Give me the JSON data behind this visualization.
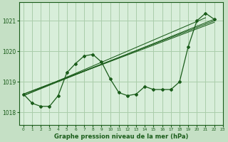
{
  "title": "Graphe pression niveau de la mer (hPa)",
  "bg_color": "#c5e0c5",
  "plot_bg_color": "#d8eeda",
  "line_color": "#1a5c1a",
  "grid_color": "#aaccaa",
  "text_color": "#1a5c1a",
  "xlim": [
    -0.5,
    23
  ],
  "ylim": [
    1017.6,
    1021.6
  ],
  "yticks": [
    1018,
    1019,
    1020,
    1021
  ],
  "xticks": [
    0,
    1,
    2,
    3,
    4,
    5,
    6,
    7,
    8,
    9,
    10,
    11,
    12,
    13,
    14,
    15,
    16,
    17,
    18,
    19,
    20,
    21,
    22,
    23
  ],
  "series": {
    "main": {
      "x": [
        0,
        1,
        2,
        3,
        4,
        5,
        6,
        7,
        8,
        9,
        10,
        11,
        12,
        13,
        14,
        15,
        16,
        17,
        18,
        19,
        20,
        21,
        22
      ],
      "y": [
        1018.6,
        1018.3,
        1018.2,
        1018.2,
        1018.55,
        1019.3,
        1019.6,
        1019.85,
        1019.9,
        1019.65,
        1019.1,
        1018.65,
        1018.55,
        1018.6,
        1018.85,
        1018.75,
        1018.75,
        1018.75,
        1019.0,
        1020.15,
        1021.0,
        1021.25,
        1021.05
      ]
    },
    "trend1": {
      "x": [
        0,
        22
      ],
      "y": [
        1018.55,
        1021.05
      ]
    },
    "trend2": {
      "x": [
        0,
        21
      ],
      "y": [
        1018.55,
        1021.1
      ]
    },
    "trend3": {
      "x": [
        0,
        22
      ],
      "y": [
        1018.6,
        1021.0
      ]
    },
    "trend4": {
      "x": [
        0,
        22
      ],
      "y": [
        1018.6,
        1020.95
      ]
    }
  }
}
